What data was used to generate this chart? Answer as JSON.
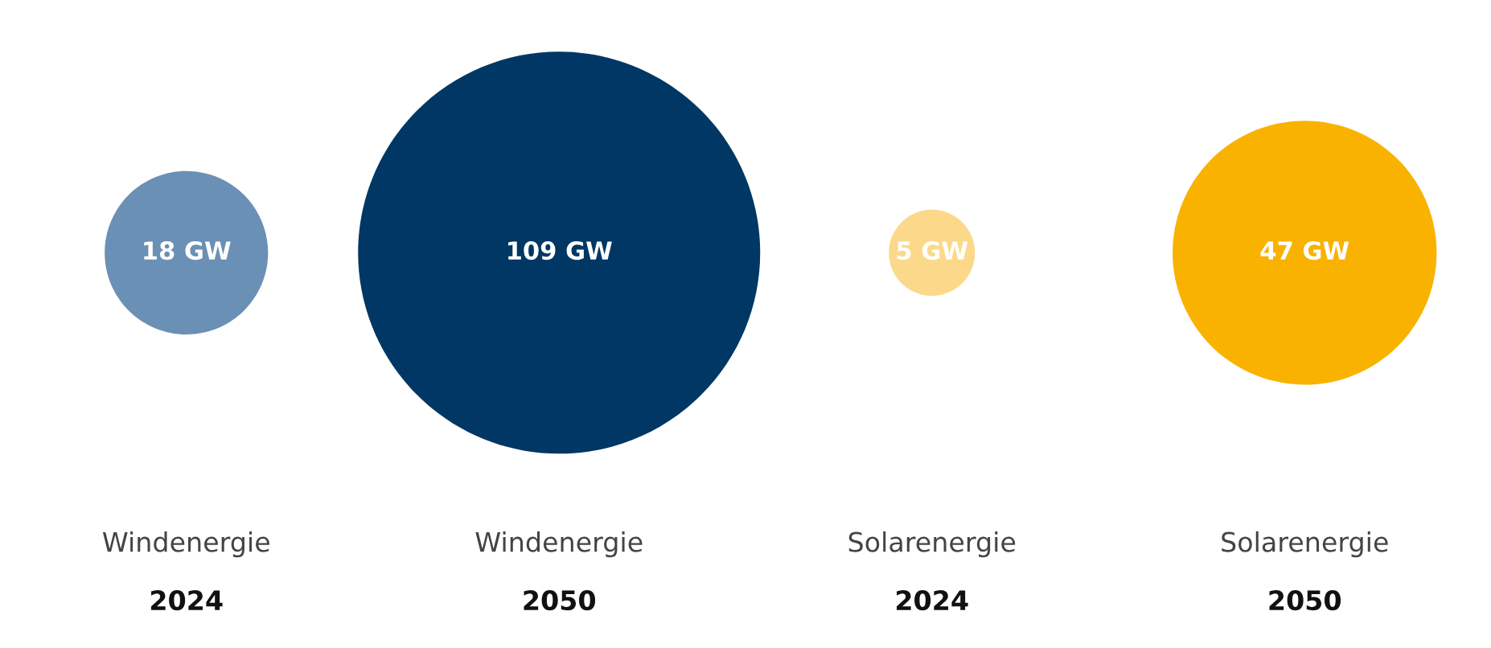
{
  "chart_data": {
    "type": "other",
    "categories": [
      "Windenergie\n2024",
      "Windenergie\n2050",
      "Solarenergie\n2024",
      "Solarenergie\n2050"
    ],
    "values": [
      18,
      109,
      5,
      47
    ],
    "value_labels": [
      "18 GW",
      "109 GW",
      "5 GW",
      "47 GW"
    ],
    "colors": [
      "#6b90b5",
      "#003764",
      "#fcd98a",
      "#f9b200"
    ]
  }
}
